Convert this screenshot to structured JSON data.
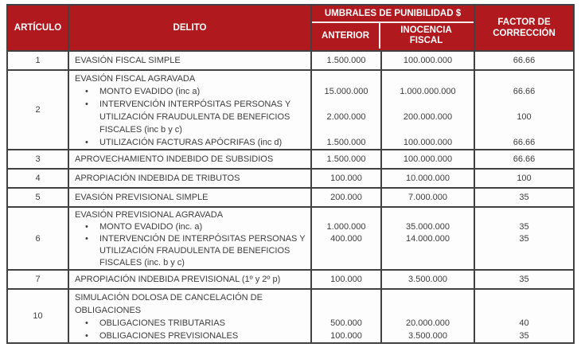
{
  "colors": {
    "header_bg": "#b0191e",
    "header_text": "#ffffff",
    "border": "#414141",
    "header_divider": "#f2eceb",
    "body_text": "#3c3c3c",
    "page_bg": "#ffffff"
  },
  "glyphs": {
    "bullet": "•"
  },
  "header": {
    "articulo": "ARTÍCULO",
    "delito": "DELITO",
    "umbrales_group": "UMBRALES DE PUNIBILIDAD $",
    "anterior": "ANTERIOR",
    "inocencia": "INOCENCIA FISCAL",
    "factor": "FACTOR DE CORRECCIÓN"
  },
  "rows": [
    {
      "articulo": "1",
      "lines": [
        {
          "style": "title",
          "delito": "EVASIÓN FISCAL SIMPLE",
          "anterior": "1.500.000",
          "inocencia": "100.000.000",
          "factor": "66.66"
        }
      ]
    },
    {
      "articulo": "2",
      "lines": [
        {
          "style": "title",
          "delito": "EVASIÓN FISCAL AGRAVADA",
          "anterior": "",
          "inocencia": "",
          "factor": ""
        },
        {
          "style": "bullet",
          "delito": "MONTO EVADIDO (inc a)",
          "anterior": "15.000.000",
          "inocencia": "1.000.000.000",
          "factor": "66.66"
        },
        {
          "style": "bullet",
          "delito": "INTERVENCIÓN INTERPÓSITAS PERSONAS Y",
          "anterior": "",
          "inocencia": "",
          "factor": ""
        },
        {
          "style": "cont",
          "delito": "UTILIZACIÓN FRAUDULENTA DE BENEFICIOS",
          "anterior": "2.000.000",
          "inocencia": "200.000.000",
          "factor": "100"
        },
        {
          "style": "cont",
          "delito": "FISCALES (inc b y c)",
          "anterior": "",
          "inocencia": "",
          "factor": ""
        },
        {
          "style": "bullet",
          "delito": "UTILIZACIÓN FACTURAS APÓCRIFAS (inc d)",
          "anterior": "1.500.000",
          "inocencia": "100.000.000",
          "factor": "66.66"
        }
      ]
    },
    {
      "articulo": "3",
      "lines": [
        {
          "style": "title",
          "delito": "APROVECHAMIENTO INDEBIDO DE SUBSIDIOS",
          "anterior": "1.500.000",
          "inocencia": "100.000.000",
          "factor": "66.66"
        }
      ]
    },
    {
      "articulo": "4",
      "lines": [
        {
          "style": "title",
          "delito": "APROPIACIÓN INDEBIDA DE TRIBUTOS",
          "anterior": "100.000",
          "inocencia": "10.000.000",
          "factor": "100"
        }
      ]
    },
    {
      "articulo": "5",
      "lines": [
        {
          "style": "title",
          "delito": "EVASIÓN PREVISIONAL SIMPLE",
          "anterior": "200.000",
          "inocencia": "7.000.000",
          "factor": "35"
        }
      ]
    },
    {
      "articulo": "6",
      "lines": [
        {
          "style": "title",
          "delito": "EVASIÓN PREVISIONAL AGRAVADA",
          "anterior": "",
          "inocencia": "",
          "factor": ""
        },
        {
          "style": "bullet",
          "delito": "MONTO EVADIDO (inc. a)",
          "anterior": "1.000.000",
          "inocencia": "35.000.000",
          "factor": "35"
        },
        {
          "style": "bullet",
          "delito": "INTERVENCIÓN DE INTERPÓSITAS PERSONAS Y",
          "anterior": "400.000",
          "inocencia": "14.000.000",
          "factor": "35"
        },
        {
          "style": "cont",
          "delito": "UTILIZACIÓN FRAUDULENTA DE BENEFICIOS",
          "anterior": "",
          "inocencia": "",
          "factor": ""
        },
        {
          "style": "cont",
          "delito": "FISCALES  (inc. b y c)",
          "anterior": "",
          "inocencia": "",
          "factor": ""
        }
      ]
    },
    {
      "articulo": "7",
      "lines": [
        {
          "style": "title",
          "delito": "APROPIACIÓN INDEBIDA PREVISIONAL (1º y 2º p)",
          "anterior": "100.000",
          "inocencia": "3.500.000",
          "factor": "35"
        }
      ]
    },
    {
      "articulo": "10",
      "lines": [
        {
          "style": "title",
          "delito": "SIMULACIÓN DOLOSA DE CANCELACIÓN DE",
          "anterior": "",
          "inocencia": "",
          "factor": ""
        },
        {
          "style": "title",
          "delito": "OBLIGACIONES",
          "anterior": "",
          "inocencia": "",
          "factor": ""
        },
        {
          "style": "bullet",
          "delito": "OBLIGACIONES TRIBUTARIAS",
          "anterior": "500.000",
          "inocencia": "20.000.000",
          "factor": "40"
        },
        {
          "style": "bullet",
          "delito": "OBLIGACIONES PREVISIONALES",
          "anterior": "100.000",
          "inocencia": "3.500.000",
          "factor": "35"
        }
      ]
    }
  ]
}
